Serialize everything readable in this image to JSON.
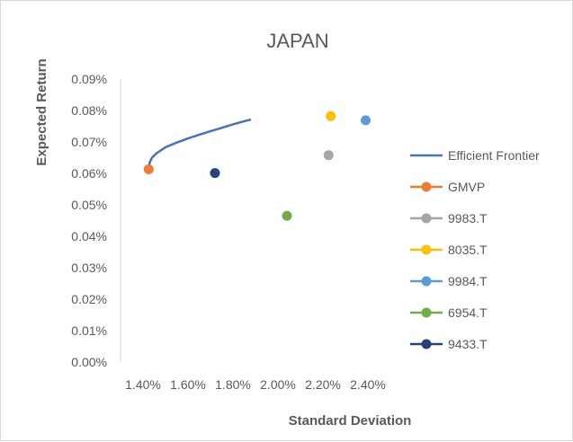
{
  "chart_data": {
    "type": "scatter",
    "title": "JAPAN",
    "xlabel": "Standard Deviation",
    "ylabel": "Expected Return",
    "xlim": [
      1.3,
      2.5
    ],
    "ylim": [
      0.0,
      0.09
    ],
    "x_ticks": [
      "1.40%",
      "1.60%",
      "1.80%",
      "2.00%",
      "2.20%",
      "2.40%"
    ],
    "x_tick_values": [
      1.4,
      1.6,
      1.8,
      2.0,
      2.2,
      2.4
    ],
    "y_ticks": [
      "0.00%",
      "0.01%",
      "0.02%",
      "0.03%",
      "0.04%",
      "0.05%",
      "0.06%",
      "0.07%",
      "0.08%",
      "0.09%"
    ],
    "y_tick_values": [
      0.0,
      0.01,
      0.02,
      0.03,
      0.04,
      0.05,
      0.06,
      0.07,
      0.08,
      0.09
    ],
    "grid": false,
    "legend_position": "right",
    "series": [
      {
        "name": "Efficient Frontier",
        "kind": "line",
        "color": "#4472c4",
        "points": [
          [
            1.425,
            0.0615
          ],
          [
            1.43,
            0.0635
          ],
          [
            1.44,
            0.065
          ],
          [
            1.46,
            0.0664
          ],
          [
            1.5,
            0.0683
          ],
          [
            1.55,
            0.0698
          ],
          [
            1.6,
            0.0711
          ],
          [
            1.65,
            0.0723
          ],
          [
            1.7,
            0.0734
          ],
          [
            1.75,
            0.0745
          ],
          [
            1.8,
            0.0756
          ],
          [
            1.85,
            0.0766
          ],
          [
            1.88,
            0.0771
          ]
        ]
      },
      {
        "name": "GMVP",
        "kind": "point",
        "color": "#ed7d31",
        "points": [
          [
            1.425,
            0.0613
          ]
        ]
      },
      {
        "name": "9983.T",
        "kind": "point",
        "color": "#a5a5a5",
        "points": [
          [
            2.225,
            0.0658
          ]
        ]
      },
      {
        "name": "8035.T",
        "kind": "point",
        "color": "#ffc000",
        "points": [
          [
            2.235,
            0.0782
          ]
        ]
      },
      {
        "name": "9984.T",
        "kind": "point",
        "color": "#5b9bd5",
        "points": [
          [
            2.39,
            0.0769
          ]
        ]
      },
      {
        "name": "6954.T",
        "kind": "point",
        "color": "#70ad47",
        "points": [
          [
            2.04,
            0.0465
          ]
        ]
      },
      {
        "name": "9433.T",
        "kind": "point",
        "color": "#264478",
        "points": [
          [
            1.72,
            0.0601
          ]
        ]
      }
    ]
  }
}
